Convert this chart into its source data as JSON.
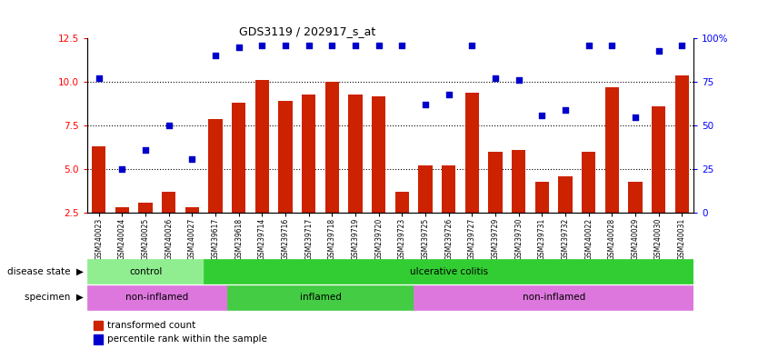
{
  "title": "GDS3119 / 202917_s_at",
  "samples": [
    "GSM240023",
    "GSM240024",
    "GSM240025",
    "GSM240026",
    "GSM240027",
    "GSM239617",
    "GSM239618",
    "GSM239714",
    "GSM239716",
    "GSM239717",
    "GSM239718",
    "GSM239719",
    "GSM239720",
    "GSM239723",
    "GSM239725",
    "GSM239726",
    "GSM239727",
    "GSM239729",
    "GSM239730",
    "GSM239731",
    "GSM239732",
    "GSM240022",
    "GSM240028",
    "GSM240029",
    "GSM240030",
    "GSM240031"
  ],
  "red_values": [
    6.3,
    2.8,
    3.1,
    3.7,
    2.8,
    7.9,
    8.8,
    10.1,
    8.9,
    9.3,
    10.0,
    9.3,
    9.2,
    3.7,
    5.2,
    5.2,
    9.4,
    6.0,
    6.1,
    4.3,
    4.6,
    6.0,
    9.7,
    4.3,
    8.6,
    10.4
  ],
  "blue_values": [
    10.2,
    5.0,
    6.1,
    7.5,
    5.6,
    11.5,
    12.0,
    12.1,
    12.1,
    12.1,
    12.1,
    12.1,
    12.1,
    12.1,
    8.7,
    9.3,
    12.1,
    10.2,
    10.1,
    8.1,
    8.4,
    12.1,
    12.1,
    8.0,
    11.8,
    12.1
  ],
  "disease_state_groups": [
    {
      "label": "control",
      "start": 0,
      "end": 5,
      "color": "#90ee90"
    },
    {
      "label": "ulcerative colitis",
      "start": 5,
      "end": 26,
      "color": "#32cd32"
    }
  ],
  "specimen_groups": [
    {
      "label": "non-inflamed",
      "start": 0,
      "end": 6,
      "color": "#dd77dd"
    },
    {
      "label": "inflamed",
      "start": 6,
      "end": 14,
      "color": "#44cc44"
    },
    {
      "label": "non-inflamed",
      "start": 14,
      "end": 26,
      "color": "#dd77dd"
    }
  ],
  "ylim_left": [
    2.5,
    12.5
  ],
  "ylim_right": [
    0,
    100
  ],
  "yticks_left": [
    2.5,
    5.0,
    7.5,
    10.0,
    12.5
  ],
  "yticks_right": [
    0,
    25,
    50,
    75,
    100
  ],
  "ytick_labels_left": [
    "2.5",
    "5.0",
    "7.5",
    "10.0",
    "12.5"
  ],
  "ytick_labels_right": [
    "0",
    "25",
    "50",
    "75",
    "100%"
  ],
  "hgrid_values": [
    5.0,
    7.5,
    10.0
  ],
  "bar_color": "#cc2200",
  "dot_color": "#0000cc",
  "bar_width": 0.6,
  "legend_red": "transformed count",
  "legend_blue": "percentile rank within the sample",
  "disease_state_label": "disease state",
  "specimen_label": "specimen",
  "fig_bg": "#ffffff",
  "ax_bg": "#ffffff",
  "bar_bottom": 0
}
